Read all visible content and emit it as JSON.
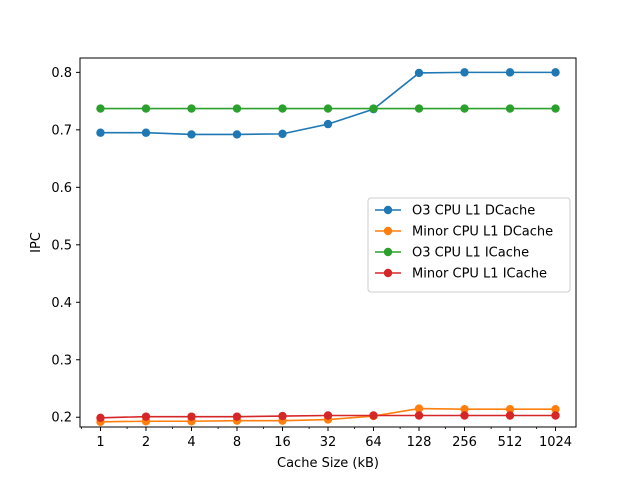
{
  "chart_data": {
    "type": "line",
    "title": "",
    "xlabel": "Cache Size (kB)",
    "ylabel": "IPC",
    "x_scale": "log2",
    "x": [
      1,
      2,
      4,
      8,
      16,
      32,
      64,
      128,
      256,
      512,
      1024
    ],
    "xtick_labels": [
      "1",
      "2",
      "4",
      "8",
      "16",
      "32",
      "64",
      "128",
      "256",
      "512",
      "1024"
    ],
    "ylim": [
      0.183,
      0.825
    ],
    "yticks": [
      0.2,
      0.3,
      0.4,
      0.5,
      0.6,
      0.7,
      0.8
    ],
    "ytick_labels": [
      "0.2",
      "0.3",
      "0.4",
      "0.5",
      "0.6",
      "0.7",
      "0.8"
    ],
    "grid": false,
    "legend_position": "center-right",
    "series": [
      {
        "name": "O3 CPU L1 DCache",
        "color": "#1f77b4",
        "values": [
          0.695,
          0.695,
          0.692,
          0.692,
          0.693,
          0.71,
          0.736,
          0.799,
          0.8,
          0.8,
          0.8
        ]
      },
      {
        "name": "Minor CPU L1 DCache",
        "color": "#ff7f0e",
        "values": [
          0.192,
          0.193,
          0.193,
          0.194,
          0.194,
          0.196,
          0.202,
          0.215,
          0.214,
          0.214,
          0.214
        ]
      },
      {
        "name": "O3 CPU L1 ICache",
        "color": "#2ca02c",
        "values": [
          0.737,
          0.737,
          0.737,
          0.737,
          0.737,
          0.737,
          0.737,
          0.737,
          0.737,
          0.737,
          0.737
        ]
      },
      {
        "name": "Minor CPU L1 ICache",
        "color": "#d62728",
        "values": [
          0.199,
          0.201,
          0.201,
          0.201,
          0.202,
          0.203,
          0.203,
          0.203,
          0.203,
          0.203,
          0.203
        ]
      }
    ]
  }
}
